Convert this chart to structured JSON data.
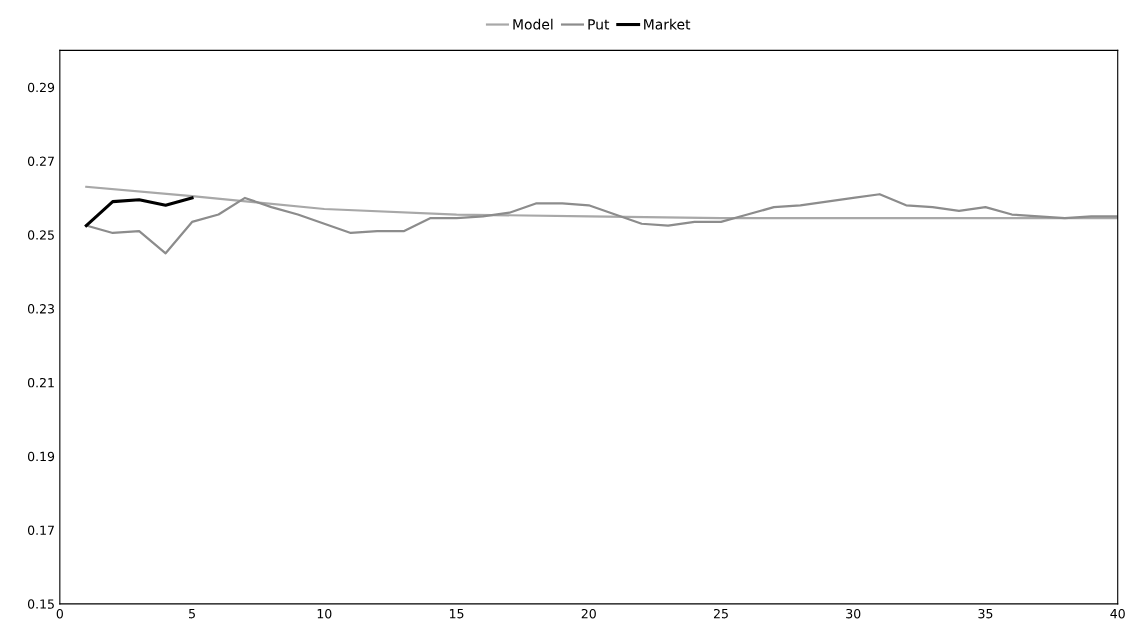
{
  "chart_data": {
    "type": "line",
    "x": [
      1,
      2,
      3,
      4,
      5,
      6,
      7,
      8,
      9,
      10,
      11,
      12,
      13,
      14,
      15,
      16,
      17,
      18,
      19,
      20,
      21,
      22,
      23,
      24,
      25,
      26,
      27,
      28,
      29,
      30,
      31,
      32,
      33,
      34,
      35,
      36,
      37,
      38,
      39,
      40
    ],
    "series": [
      {
        "name": "Model",
        "color": "#a8a8a8",
        "x": [
          1,
          5,
          10,
          15,
          20,
          25,
          30,
          35,
          40
        ],
        "values": [
          0.263,
          0.2605,
          0.257,
          0.2555,
          0.255,
          0.2545,
          0.2545,
          0.2545,
          0.2545
        ]
      },
      {
        "name": "Put",
        "color": "#8c8c8c",
        "values": [
          0.2525,
          0.2505,
          0.251,
          0.245,
          0.2535,
          0.2555,
          0.26,
          0.2575,
          0.2555,
          0.253,
          0.2505,
          0.251,
          0.251,
          0.2545,
          0.2545,
          0.255,
          0.256,
          0.2585,
          0.2585,
          0.258,
          0.2555,
          0.253,
          0.2525,
          0.2535,
          0.2535,
          0.2555,
          0.2575,
          0.258,
          0.259,
          0.26,
          0.261,
          0.258,
          0.2575,
          0.2565,
          0.2575,
          0.2555,
          0.255,
          0.2545,
          0.255,
          0.255
        ]
      },
      {
        "name": "Market",
        "color": "#000000",
        "x": [
          1,
          2,
          3,
          4,
          5
        ],
        "values": [
          0.2525,
          0.259,
          0.2595,
          0.258,
          0.26
        ]
      }
    ],
    "xlim": [
      0,
      40
    ],
    "xticks": [
      0,
      5,
      10,
      15,
      20,
      25,
      30,
      35,
      40
    ],
    "ylim": [
      0.15,
      0.3
    ],
    "yticks": [
      0.15,
      0.17,
      0.19,
      0.21,
      0.23,
      0.25,
      0.27,
      0.29
    ],
    "grid": false,
    "legend": "top",
    "marker": "none",
    "line_style": "solid"
  }
}
